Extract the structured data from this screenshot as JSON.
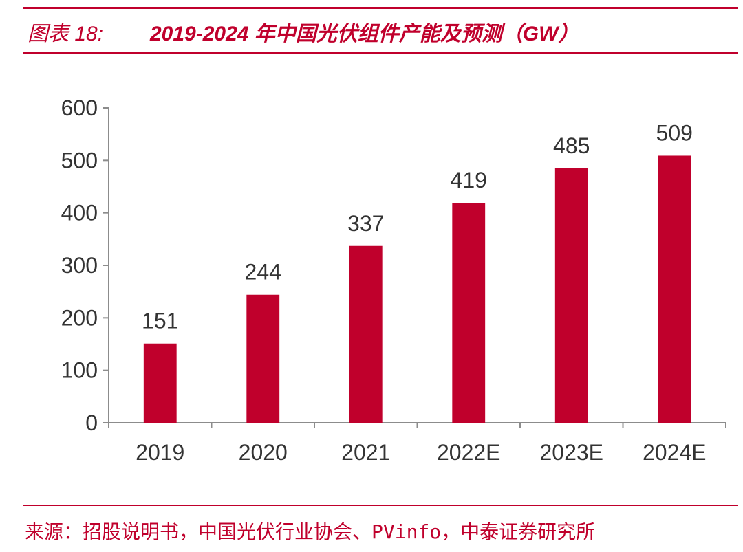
{
  "header": {
    "figure_label": "图表 18:",
    "title": "2019-2024 年中国光伏组件产能及预测（GW）"
  },
  "footer": {
    "source": "来源：招股说明书，中国光伏行业协会、PVinfo，中泰证券研究所"
  },
  "colors": {
    "accent": "#c0002c",
    "axis": "#8c8c8c",
    "text": "#333333"
  },
  "chart_data": {
    "type": "bar",
    "title": "2019-2024 年中国光伏组件产能及预测（GW）",
    "categories": [
      "2019",
      "2020",
      "2021",
      "2022E",
      "2023E",
      "2024E"
    ],
    "values": [
      151,
      244,
      337,
      419,
      485,
      509
    ],
    "xlabel": "",
    "ylabel": "",
    "ylim": [
      0,
      600
    ],
    "yticks": [
      0,
      100,
      200,
      300,
      400,
      500,
      600
    ],
    "grid": false,
    "legend": "none",
    "bar_color": "#c0002c"
  }
}
